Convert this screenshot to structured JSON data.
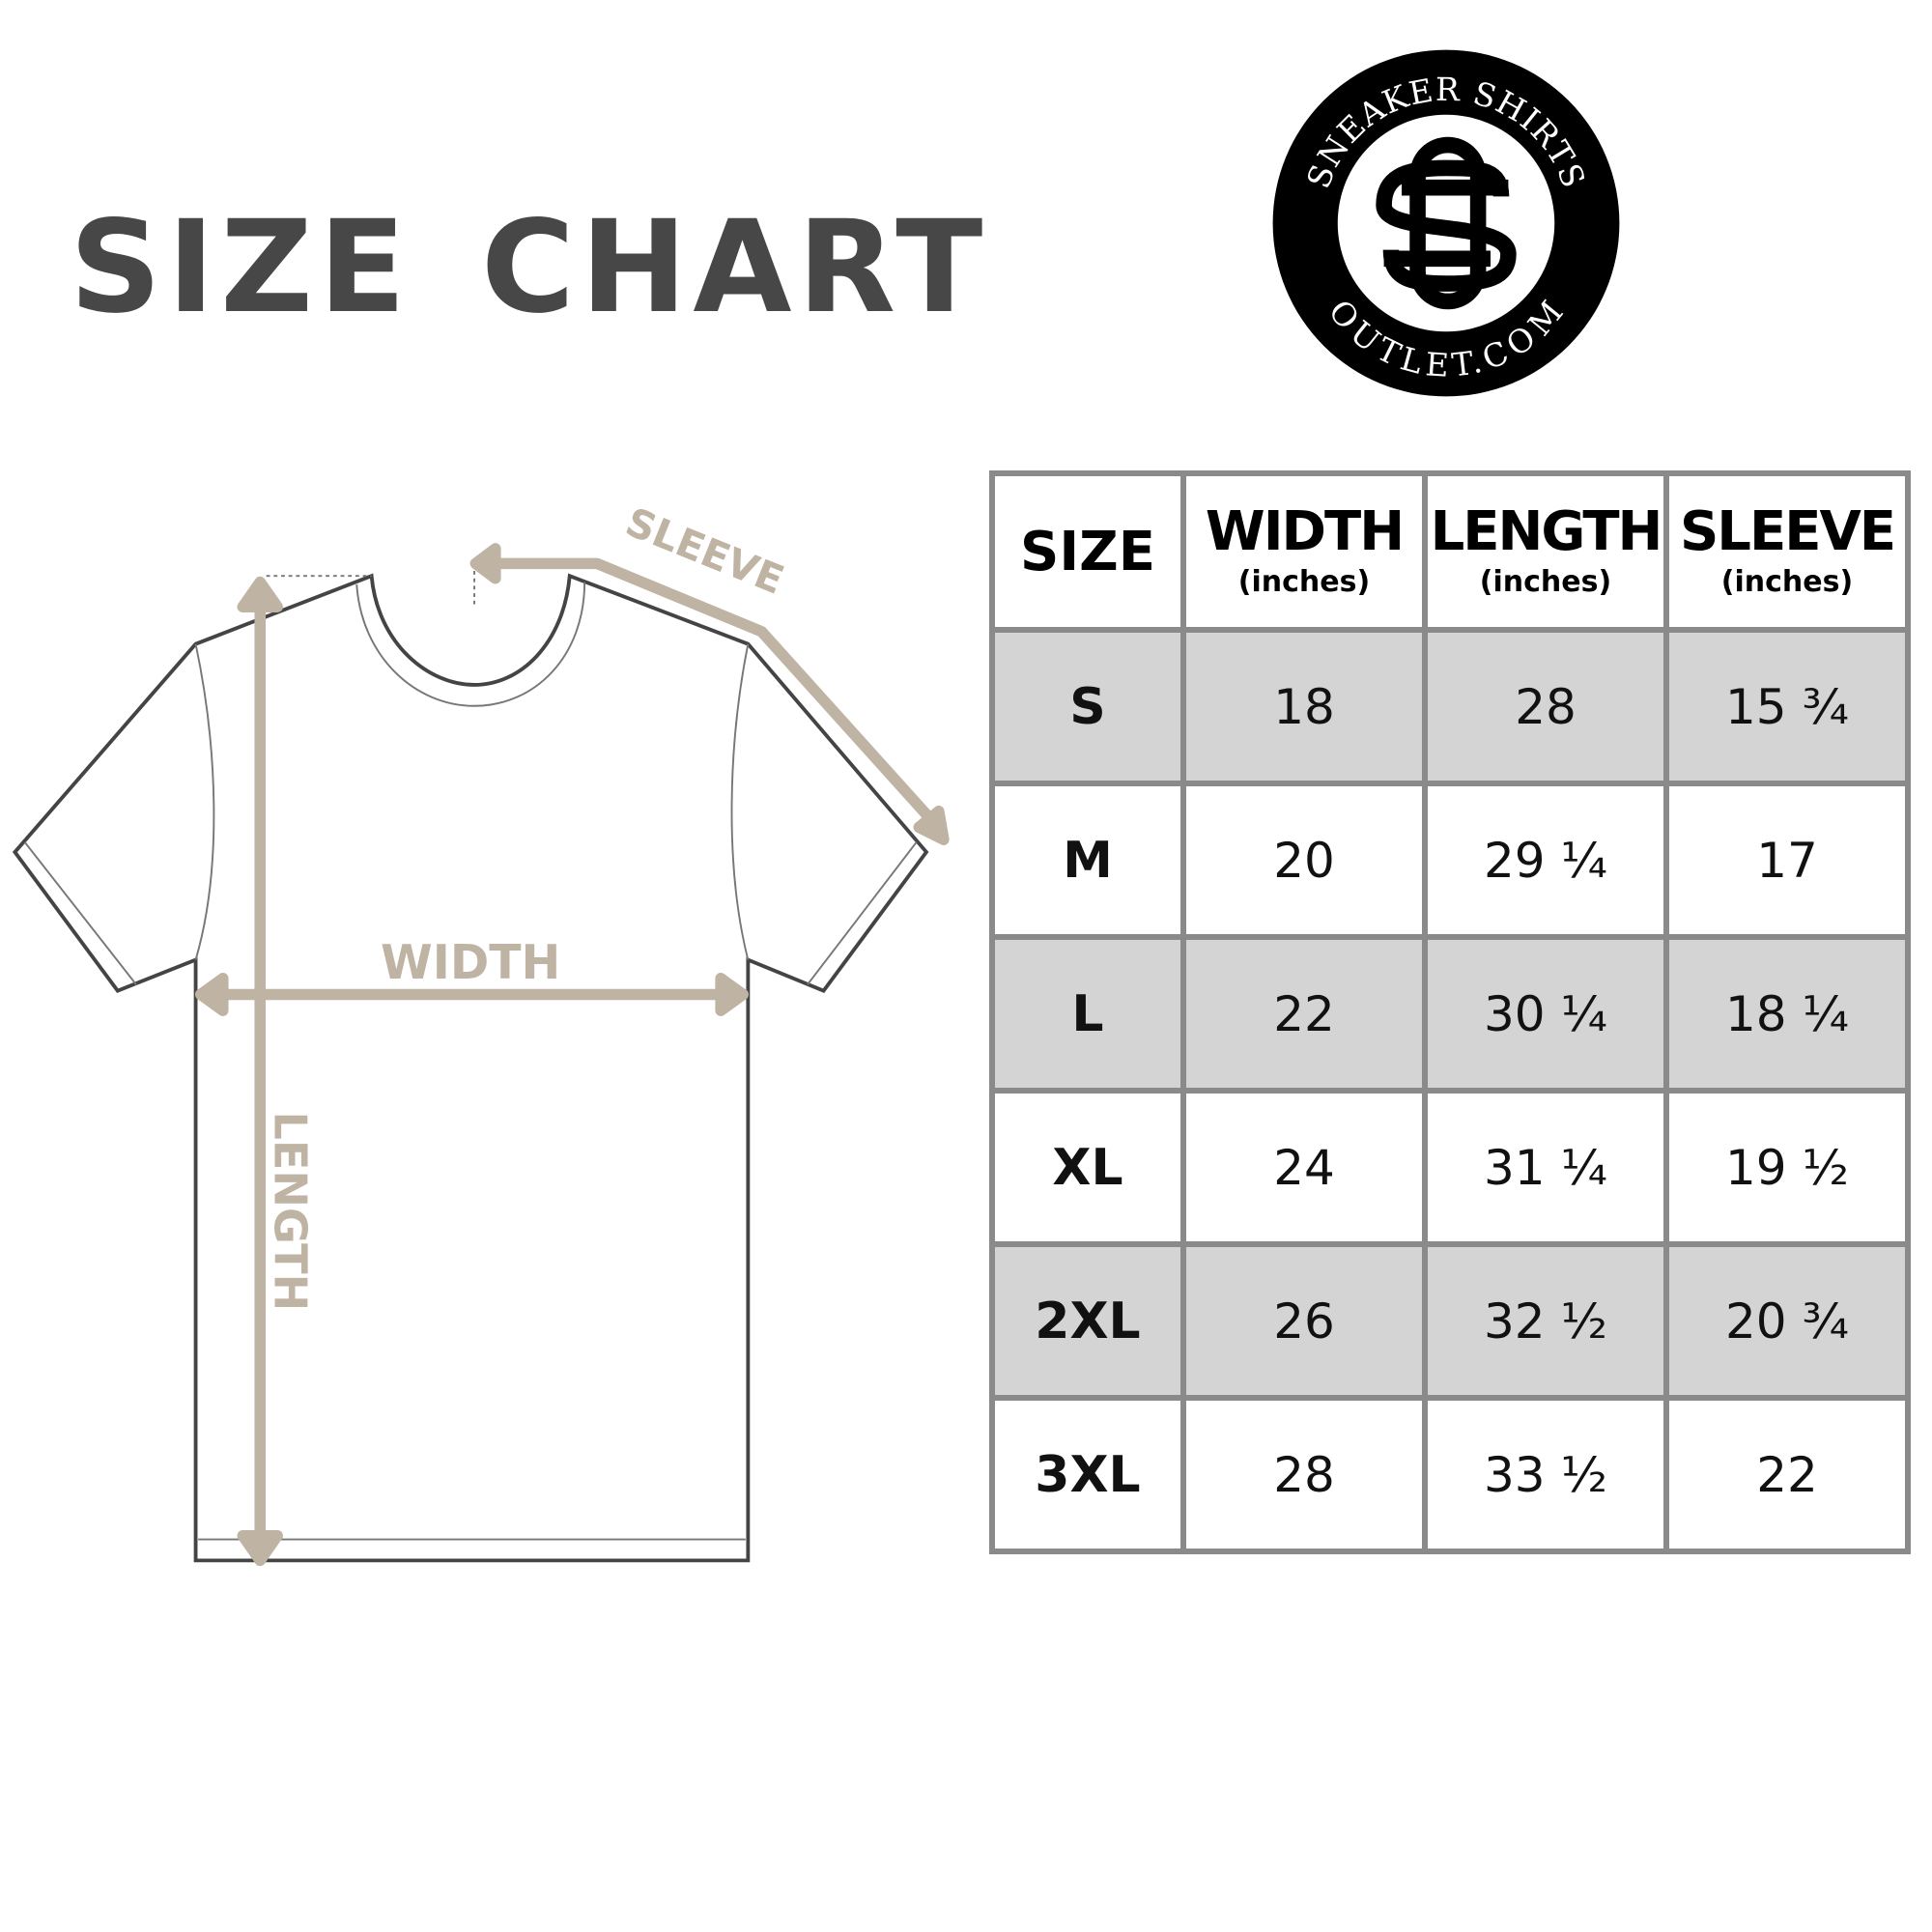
{
  "title": "SIZE CHART",
  "logo": {
    "top_text": "SNEAKER SHIRTS",
    "bottom_text": "OUTLET.COM",
    "monogram": "SO"
  },
  "diagram": {
    "sleeve_label": "SLEEVE",
    "width_label": "WIDTH",
    "length_label": "LENGTH",
    "arrow_color": "#bfb3a4"
  },
  "table": {
    "headers": [
      {
        "label": "SIZE",
        "unit": ""
      },
      {
        "label": "WIDTH",
        "unit": "(inches)"
      },
      {
        "label": "LENGTH",
        "unit": "(inches)"
      },
      {
        "label": "SLEEVE",
        "unit": "(inches)"
      }
    ],
    "rows": [
      [
        "S",
        "18",
        "28",
        "15 ¾"
      ],
      [
        "M",
        "20",
        "29 ¼",
        "17"
      ],
      [
        "L",
        "22",
        "30 ¼",
        "18 ¼"
      ],
      [
        "XL",
        "24",
        "31 ¼",
        "19 ½"
      ],
      [
        "2XL",
        "26",
        "32 ½",
        "20 ¾"
      ],
      [
        "3XL",
        "28",
        "33 ½",
        "22"
      ]
    ],
    "stripe_color": "#d4d4d4",
    "border_color": "#8a8a8a"
  }
}
